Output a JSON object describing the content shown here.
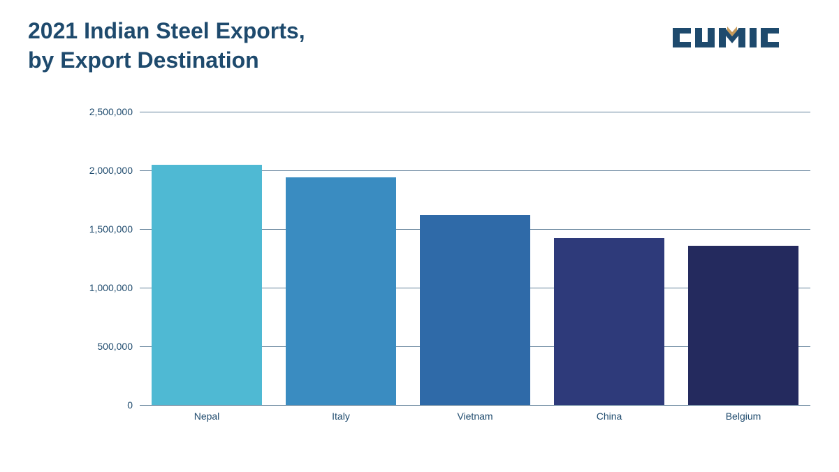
{
  "title_line1": "2021 Indian Steel Exports,",
  "title_line2": "by Export Destination",
  "logo_text": "CUMIC",
  "logo_color": "#1e4a6d",
  "logo_accent_color": "#c69a5b",
  "chart": {
    "type": "bar",
    "categories": [
      "Nepal",
      "Italy",
      "Vietnam",
      "China",
      "Belgium"
    ],
    "values": [
      2050000,
      1940000,
      1620000,
      1420000,
      1360000
    ],
    "bar_colors": [
      "#4fb9d3",
      "#3a8cc1",
      "#2f6aa8",
      "#2e3a7a",
      "#242a5e"
    ],
    "ylim": [
      0,
      2500000
    ],
    "ytick_step": 500000,
    "ytick_labels": [
      "0",
      "500,000",
      "1,000,000",
      "1,500,000",
      "2,000,000",
      "2,500,000"
    ],
    "grid_color": "#1e4a6d",
    "background_color": "#ffffff",
    "text_color": "#1e4a6d",
    "bar_width_ratio": 0.82,
    "title_fontsize": 32,
    "tick_fontsize": 14
  }
}
